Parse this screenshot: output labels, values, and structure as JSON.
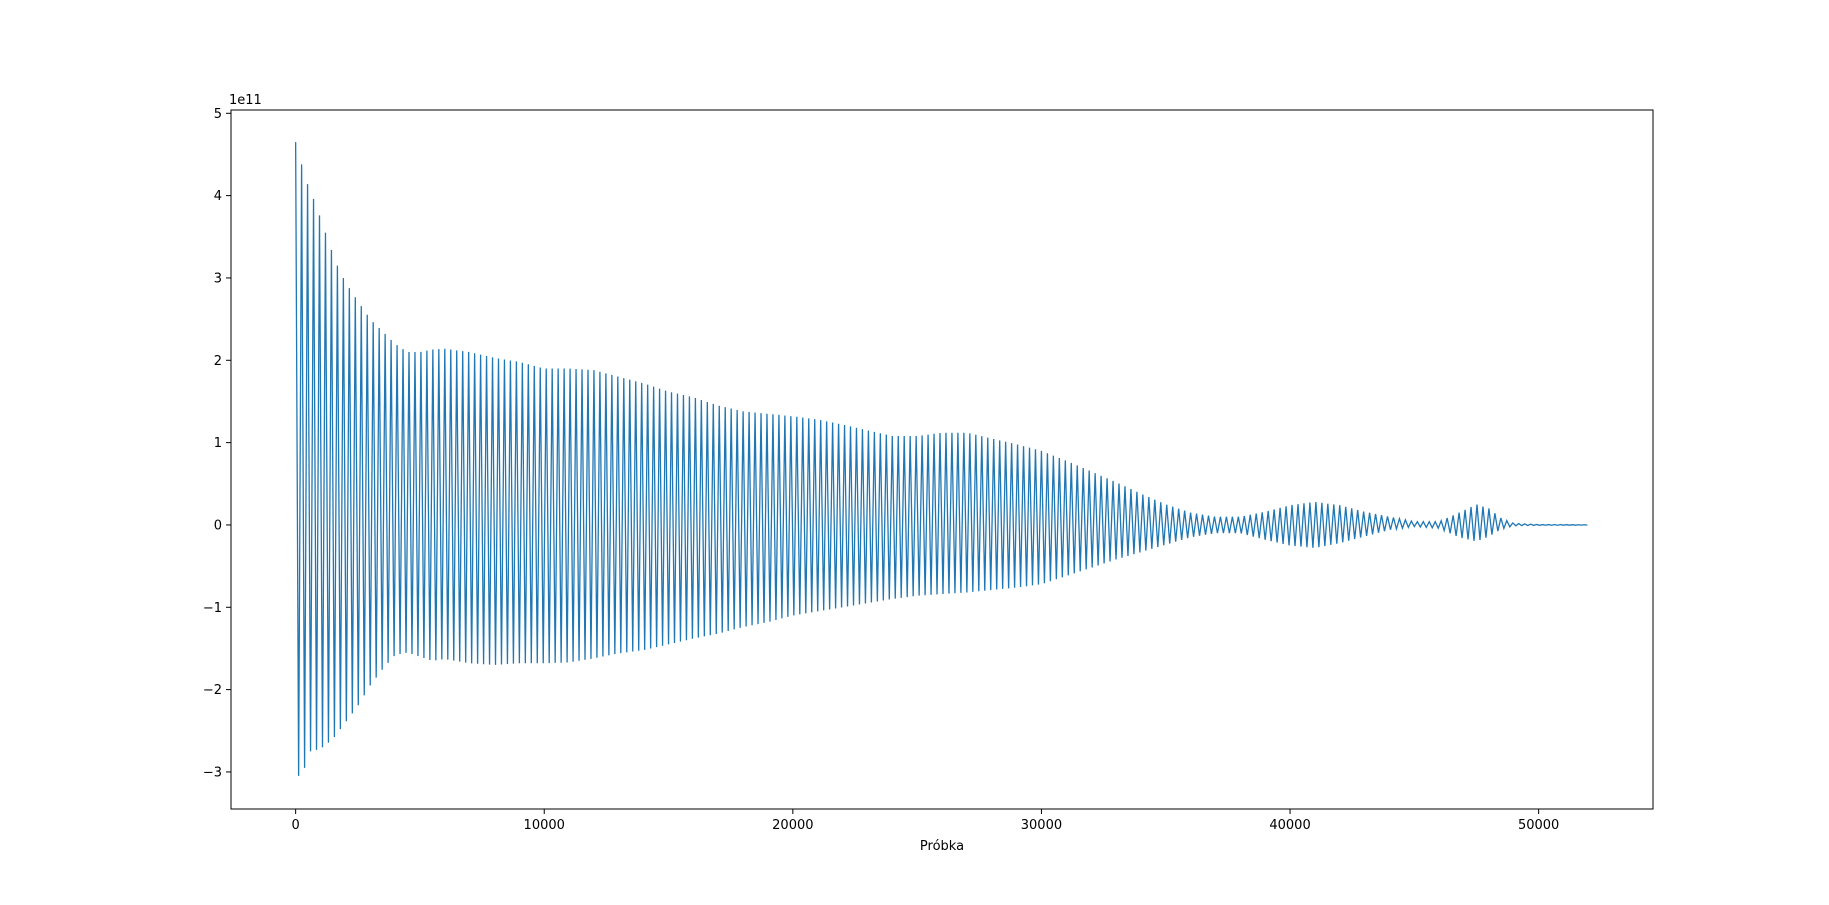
{
  "chart_data": {
    "type": "line",
    "title": "",
    "xlabel": "Próbka",
    "ylabel": "",
    "y_offset_label": "1e11",
    "y_scale": 100000000000.0,
    "xlim": [
      -2600,
      54600
    ],
    "ylim": [
      -345000000000.0,
      504000000000.0
    ],
    "grid": false,
    "legend": "none",
    "x_ticks": [
      0,
      10000,
      20000,
      30000,
      40000,
      50000
    ],
    "x_tick_labels": [
      "0",
      "10000",
      "20000",
      "30000",
      "40000",
      "50000"
    ],
    "y_ticks": [
      -300000000000.0,
      -200000000000.0,
      -100000000000.0,
      0,
      100000000000.0,
      200000000000.0,
      300000000000.0,
      400000000000.0,
      500000000000.0
    ],
    "y_tick_labels": [
      "−3",
      "−2",
      "−1",
      "0",
      "1",
      "2",
      "3",
      "4",
      "5"
    ],
    "series": [
      {
        "color": "#1f77b4",
        "x_start": 0,
        "x_end": 52000,
        "cycle_length": 240,
        "upper_envelope": [
          [
            0,
            465000000000.0
          ],
          [
            400,
            420000000000.0
          ],
          [
            800,
            390000000000.0
          ],
          [
            1200,
            355000000000.0
          ],
          [
            1600,
            320000000000.0
          ],
          [
            2000,
            295000000000.0
          ],
          [
            2500,
            272000000000.0
          ],
          [
            3000,
            250000000000.0
          ],
          [
            3500,
            235000000000.0
          ],
          [
            4000,
            220000000000.0
          ],
          [
            4500,
            210000000000.0
          ],
          [
            5000,
            210000000000.0
          ],
          [
            5500,
            213000000000.0
          ],
          [
            6000,
            214000000000.0
          ],
          [
            7000,
            210000000000.0
          ],
          [
            8000,
            203000000000.0
          ],
          [
            9000,
            198000000000.0
          ],
          [
            10000,
            190000000000.0
          ],
          [
            11000,
            190000000000.0
          ],
          [
            12000,
            188000000000.0
          ],
          [
            13000,
            180000000000.0
          ],
          [
            14000,
            172000000000.0
          ],
          [
            15000,
            162000000000.0
          ],
          [
            16000,
            155000000000.0
          ],
          [
            17000,
            145000000000.0
          ],
          [
            18000,
            138000000000.0
          ],
          [
            19000,
            135000000000.0
          ],
          [
            20000,
            132000000000.0
          ],
          [
            21000,
            128000000000.0
          ],
          [
            22000,
            122000000000.0
          ],
          [
            23000,
            115000000000.0
          ],
          [
            24000,
            108000000000.0
          ],
          [
            25000,
            108000000000.0
          ],
          [
            26000,
            112000000000.0
          ],
          [
            27000,
            112000000000.0
          ],
          [
            28000,
            105000000000.0
          ],
          [
            29000,
            98000000000.0
          ],
          [
            30000,
            90000000000.0
          ],
          [
            31000,
            78000000000.0
          ],
          [
            32000,
            65000000000.0
          ],
          [
            33000,
            52000000000.0
          ],
          [
            34000,
            38000000000.0
          ],
          [
            35000,
            25000000000.0
          ],
          [
            36000,
            15000000000.0
          ],
          [
            37000,
            10000000000.0
          ],
          [
            38000,
            10000000000.0
          ],
          [
            39000,
            16000000000.0
          ],
          [
            40000,
            24000000000.0
          ],
          [
            41000,
            28000000000.0
          ],
          [
            42000,
            24000000000.0
          ],
          [
            43000,
            16000000000.0
          ],
          [
            44000,
            10000000000.0
          ],
          [
            45000,
            4000000000.0
          ],
          [
            46000,
            4000000000.0
          ],
          [
            46800,
            15000000000.0
          ],
          [
            47500,
            25000000000.0
          ],
          [
            48000,
            20000000000.0
          ],
          [
            48500,
            8000000000.0
          ],
          [
            49000,
            2000000000.0
          ],
          [
            50000,
            500000000.0
          ],
          [
            52000,
            200000000.0
          ]
        ],
        "lower_envelope": [
          [
            0,
            -308000000000.0
          ],
          [
            300,
            -300000000000.0
          ],
          [
            600,
            -275000000000.0
          ],
          [
            1000,
            -272000000000.0
          ],
          [
            1500,
            -260000000000.0
          ],
          [
            2000,
            -240000000000.0
          ],
          [
            2500,
            -220000000000.0
          ],
          [
            3000,
            -195000000000.0
          ],
          [
            3500,
            -175000000000.0
          ],
          [
            4000,
            -158000000000.0
          ],
          [
            4500,
            -155000000000.0
          ],
          [
            5000,
            -160000000000.0
          ],
          [
            5500,
            -165000000000.0
          ],
          [
            6000,
            -163000000000.0
          ],
          [
            7000,
            -168000000000.0
          ],
          [
            8000,
            -170000000000.0
          ],
          [
            9000,
            -168000000000.0
          ],
          [
            10000,
            -168000000000.0
          ],
          [
            11000,
            -167000000000.0
          ],
          [
            12000,
            -162000000000.0
          ],
          [
            13000,
            -156000000000.0
          ],
          [
            14000,
            -152000000000.0
          ],
          [
            15000,
            -145000000000.0
          ],
          [
            16000,
            -138000000000.0
          ],
          [
            17000,
            -132000000000.0
          ],
          [
            18000,
            -124000000000.0
          ],
          [
            19000,
            -118000000000.0
          ],
          [
            20000,
            -110000000000.0
          ],
          [
            21000,
            -105000000000.0
          ],
          [
            22000,
            -100000000000.0
          ],
          [
            23000,
            -95000000000.0
          ],
          [
            24000,
            -90000000000.0
          ],
          [
            25000,
            -86000000000.0
          ],
          [
            26000,
            -84000000000.0
          ],
          [
            27000,
            -82000000000.0
          ],
          [
            28000,
            -79000000000.0
          ],
          [
            29000,
            -76000000000.0
          ],
          [
            30000,
            -72000000000.0
          ],
          [
            31000,
            -62000000000.0
          ],
          [
            32000,
            -52000000000.0
          ],
          [
            33000,
            -42000000000.0
          ],
          [
            34000,
            -33000000000.0
          ],
          [
            35000,
            -24000000000.0
          ],
          [
            36000,
            -15000000000.0
          ],
          [
            37000,
            -10000000000.0
          ],
          [
            38000,
            -10000000000.0
          ],
          [
            39000,
            -18000000000.0
          ],
          [
            40000,
            -25000000000.0
          ],
          [
            41000,
            -28000000000.0
          ],
          [
            42000,
            -22000000000.0
          ],
          [
            43000,
            -14000000000.0
          ],
          [
            44000,
            -6000000000.0
          ],
          [
            45000,
            -2000000000.0
          ],
          [
            46000,
            -4000000000.0
          ],
          [
            46800,
            -15000000000.0
          ],
          [
            47500,
            -20000000000.0
          ],
          [
            48000,
            -14000000000.0
          ],
          [
            48500,
            -5000000000.0
          ],
          [
            49000,
            -1000000000.0
          ],
          [
            50000,
            -400000000.0
          ],
          [
            52000,
            -200000000.0
          ]
        ]
      }
    ]
  }
}
